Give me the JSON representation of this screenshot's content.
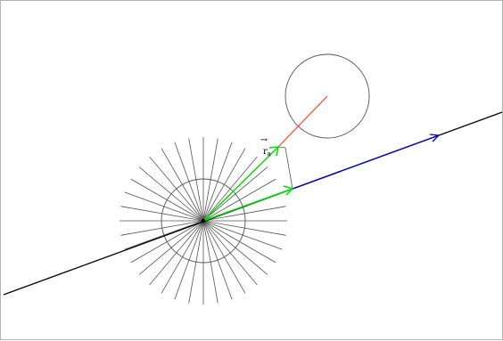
{
  "labels": {
    "vector_label": "r",
    "vector_label_arrow": "→",
    "vector_label_subscript": "a"
  },
  "colors": {
    "frame": "#b3b3b3",
    "black_line": "#000000",
    "circles": "#555555",
    "spokes": "#555555",
    "green_vectors": "#00e000",
    "blue_vector": "#0000cc",
    "red_segment": "#ff3b1f",
    "projection_lines": "#555555"
  },
  "elements": {
    "spoke_count": 36
  }
}
